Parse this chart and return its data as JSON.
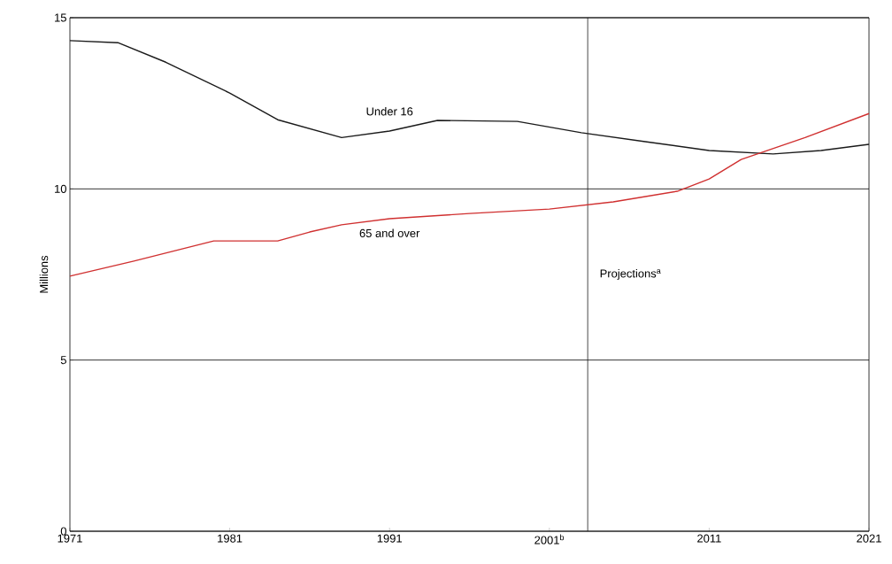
{
  "chart_data": {
    "type": "line",
    "ylabel": "Millions",
    "x": [
      1971,
      1974,
      1977,
      1981,
      1984,
      1988,
      1991,
      1994,
      1999,
      2003,
      2007,
      2011,
      2015,
      2018,
      2021
    ],
    "series": [
      {
        "name": "Under 16",
        "color": "#1a1a1a",
        "values": [
          14.33,
          14.27,
          13.7,
          12.8,
          12.02,
          11.5,
          11.69,
          12.0,
          11.97,
          11.64,
          11.38,
          11.12,
          11.02,
          11.12,
          11.3
        ]
      },
      {
        "name": "65 and over",
        "color": "#d03030",
        "x": [
          1971,
          1975,
          1980,
          1984,
          1986,
          1988,
          1991,
          1996,
          2001,
          2005,
          2009,
          2011,
          2013,
          2017,
          2021
        ],
        "values": [
          7.45,
          7.89,
          8.48,
          8.48,
          8.74,
          8.95,
          9.13,
          9.28,
          9.41,
          9.62,
          9.93,
          10.29,
          10.86,
          11.5,
          12.2
        ]
      }
    ],
    "xlim": [
      1971,
      2021
    ],
    "ylim": [
      0,
      15
    ],
    "xticks": [
      1971,
      1981,
      1991,
      {
        "value": 2001,
        "label": "2001$^{b}$"
      },
      2011,
      2021
    ],
    "yticks": [
      0,
      5,
      10,
      15
    ],
    "grid": "y",
    "ref_lines": [
      {
        "axis": "x",
        "value": 2003.4,
        "label": "Projections$^{a}$",
        "color": "#1a1a1a"
      }
    ]
  }
}
